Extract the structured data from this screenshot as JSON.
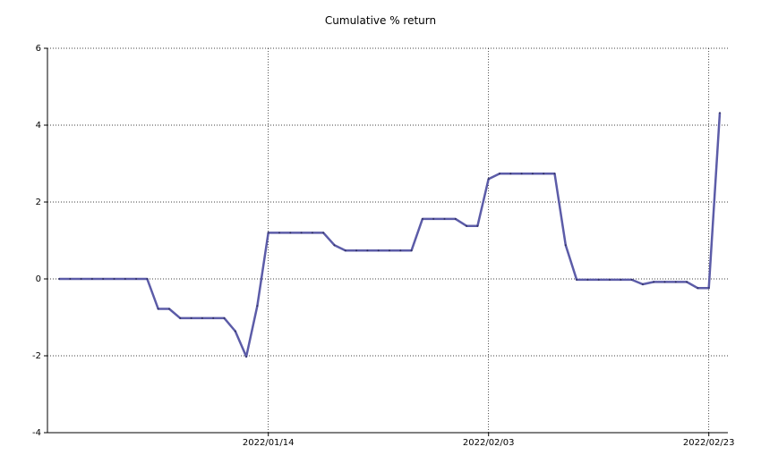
{
  "chart_data": {
    "type": "line",
    "title": "Cumulative % return",
    "xlabel": "",
    "ylabel": "",
    "ylim": [
      -4,
      6
    ],
    "y_ticks": [
      6,
      4,
      2,
      0,
      -2,
      -4
    ],
    "x_tick_labels": [
      "2022/01/14",
      "2022/02/03",
      "2022/02/23"
    ],
    "grid": true,
    "line_color": "#5c5ca8",
    "series": [
      {
        "name": "",
        "values": [
          0,
          0,
          0,
          0,
          0,
          0,
          0,
          0,
          0,
          -0.78,
          -0.78,
          -1.02,
          -1.02,
          -1.02,
          -1.02,
          -1.02,
          -1.36,
          -2.02,
          -0.7,
          1.2,
          1.2,
          1.2,
          1.2,
          1.2,
          1.2,
          0.88,
          0.74,
          0.74,
          0.74,
          0.74,
          0.74,
          0.74,
          0.74,
          1.56,
          1.56,
          1.56,
          1.56,
          1.38,
          1.38,
          2.6,
          2.74,
          2.74,
          2.74,
          2.74,
          2.74,
          2.74,
          0.88,
          -0.02,
          -0.02,
          -0.02,
          -0.02,
          -0.02,
          -0.02,
          -0.14,
          -0.08,
          -0.08,
          -0.08,
          -0.08,
          -0.24,
          -0.24,
          4.32
        ]
      }
    ]
  }
}
